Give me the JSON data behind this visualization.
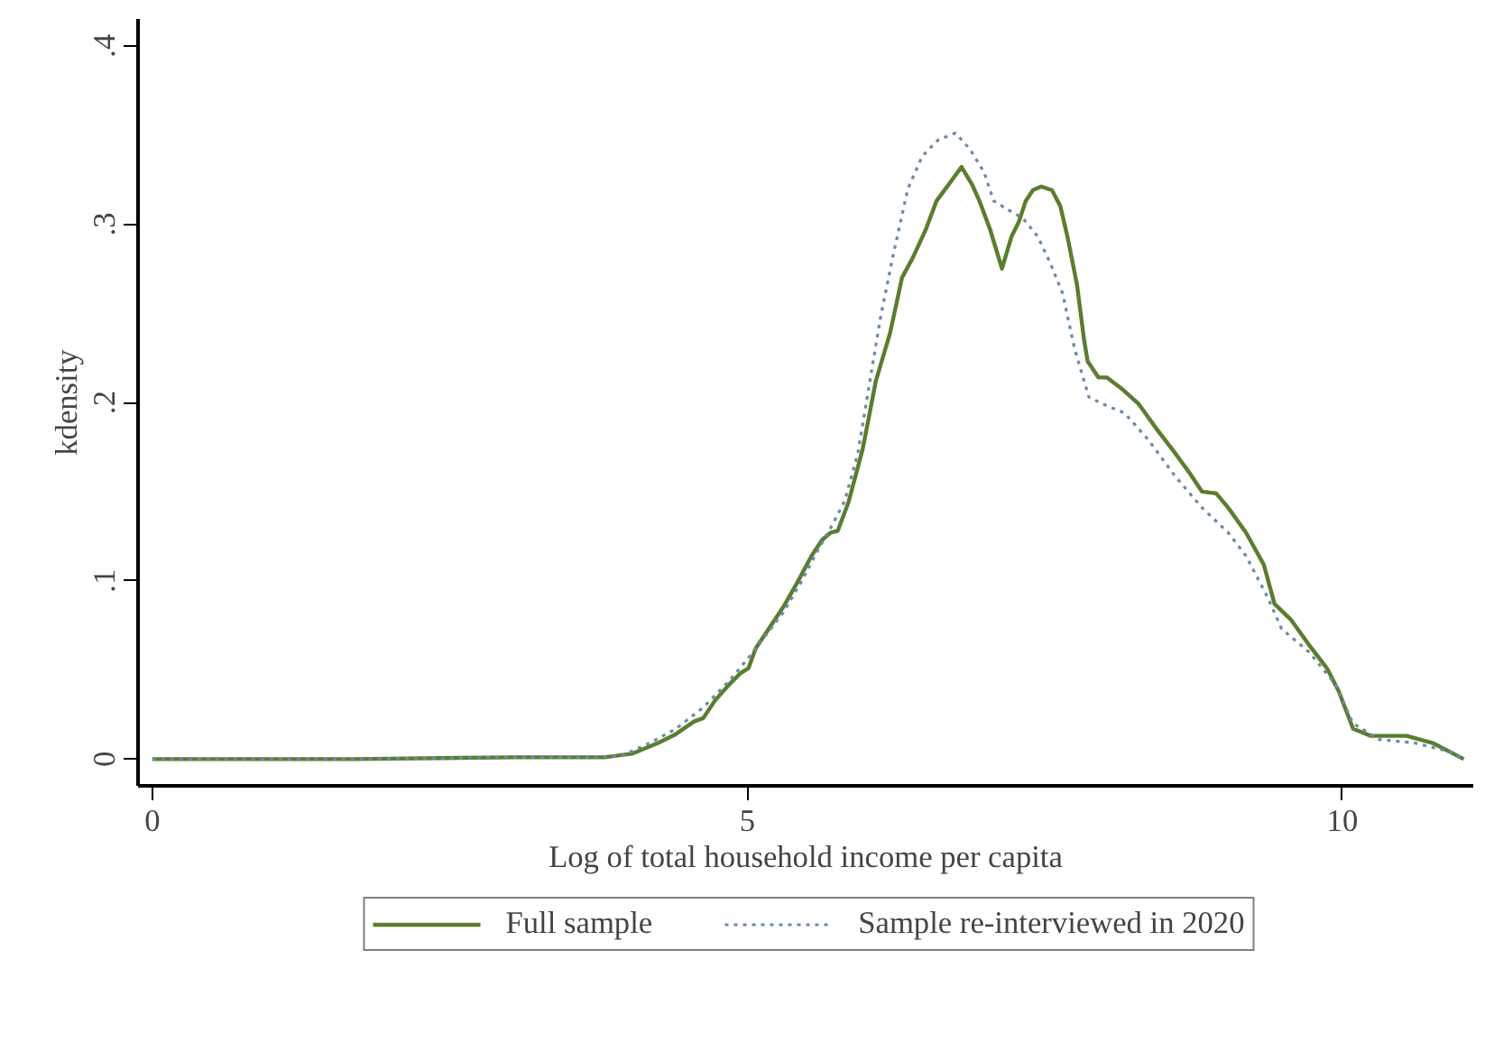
{
  "chart_data": {
    "type": "line",
    "xlabel": "Log of total household income per capita",
    "ylabel": "kdensity",
    "xlim": [
      -0.12,
      11.1
    ],
    "ylim": [
      -0.015,
      0.415
    ],
    "xticks": [
      0,
      5,
      10
    ],
    "yticks": [
      0,
      {
        "value": 0.1,
        "label": ".1"
      },
      {
        "value": 0.2,
        "label": ".2"
      },
      {
        "value": 0.3,
        "label": ".3"
      },
      {
        "value": 0.4,
        "label": ".4"
      }
    ],
    "grid": false,
    "legend": "bottom",
    "series": [
      {
        "name": "Full sample",
        "color": "#5a7d2f",
        "line_style": "solid",
        "x": [
          0,
          1.7,
          3.05,
          3.8,
          4.03,
          4.25,
          4.4,
          4.55,
          4.63,
          4.73,
          4.85,
          4.94,
          5.01,
          5.07,
          5.18,
          5.3,
          5.42,
          5.54,
          5.63,
          5.7,
          5.76,
          5.85,
          5.97,
          6.08,
          6.2,
          6.3,
          6.39,
          6.5,
          6.59,
          6.69,
          6.8,
          6.89,
          6.95,
          7.04,
          7.14,
          7.22,
          7.28,
          7.34,
          7.4,
          7.47,
          7.56,
          7.63,
          7.69,
          7.77,
          7.83,
          7.86,
          7.95,
          8.02,
          8.14,
          8.29,
          8.44,
          8.59,
          8.71,
          8.82,
          8.94,
          9.04,
          9.19,
          9.34,
          9.43,
          9.57,
          9.72,
          9.87,
          9.97,
          10.09,
          10.24,
          10.54,
          10.76,
          11.02
        ],
        "values": [
          0,
          0,
          0.001,
          0.001,
          0.003,
          0.009,
          0.014,
          0.021,
          0.023,
          0.033,
          0.042,
          0.048,
          0.051,
          0.062,
          0.073,
          0.085,
          0.099,
          0.114,
          0.123,
          0.127,
          0.128,
          0.144,
          0.174,
          0.212,
          0.239,
          0.27,
          0.281,
          0.297,
          0.313,
          0.322,
          0.332,
          0.322,
          0.313,
          0.297,
          0.275,
          0.293,
          0.301,
          0.313,
          0.319,
          0.321,
          0.319,
          0.31,
          0.293,
          0.266,
          0.235,
          0.223,
          0.214,
          0.214,
          0.208,
          0.199,
          0.185,
          0.172,
          0.161,
          0.15,
          0.149,
          0.141,
          0.127,
          0.109,
          0.087,
          0.078,
          0.064,
          0.051,
          0.038,
          0.017,
          0.013,
          0.013,
          0.009,
          0
        ]
      },
      {
        "name": "Sample re-interviewed in 2020",
        "color": "#6b8aa8",
        "line_style": "dotted",
        "x": [
          0,
          1.7,
          3.05,
          3.7,
          3.95,
          4.18,
          4.4,
          4.63,
          4.85,
          5.0,
          5.15,
          5.3,
          5.45,
          5.6,
          5.72,
          5.82,
          5.93,
          6.02,
          6.12,
          6.23,
          6.35,
          6.47,
          6.6,
          6.75,
          6.87,
          6.99,
          7.07,
          7.19,
          7.32,
          7.44,
          7.54,
          7.65,
          7.75,
          7.87,
          7.99,
          8.17,
          8.37,
          8.59,
          8.82,
          9.04,
          9.19,
          9.37,
          9.49,
          9.72,
          9.94,
          10.09,
          10.31,
          10.61,
          10.91,
          11.02
        ],
        "values": [
          0,
          0,
          0.001,
          0.001,
          0.002,
          0.009,
          0.017,
          0.029,
          0.044,
          0.056,
          0.069,
          0.082,
          0.099,
          0.118,
          0.132,
          0.145,
          0.172,
          0.208,
          0.248,
          0.284,
          0.32,
          0.338,
          0.347,
          0.351,
          0.342,
          0.329,
          0.313,
          0.308,
          0.303,
          0.293,
          0.279,
          0.261,
          0.23,
          0.203,
          0.199,
          0.194,
          0.179,
          0.159,
          0.141,
          0.127,
          0.114,
          0.091,
          0.073,
          0.06,
          0.042,
          0.02,
          0.011,
          0.009,
          0.004,
          0
        ]
      }
    ]
  }
}
